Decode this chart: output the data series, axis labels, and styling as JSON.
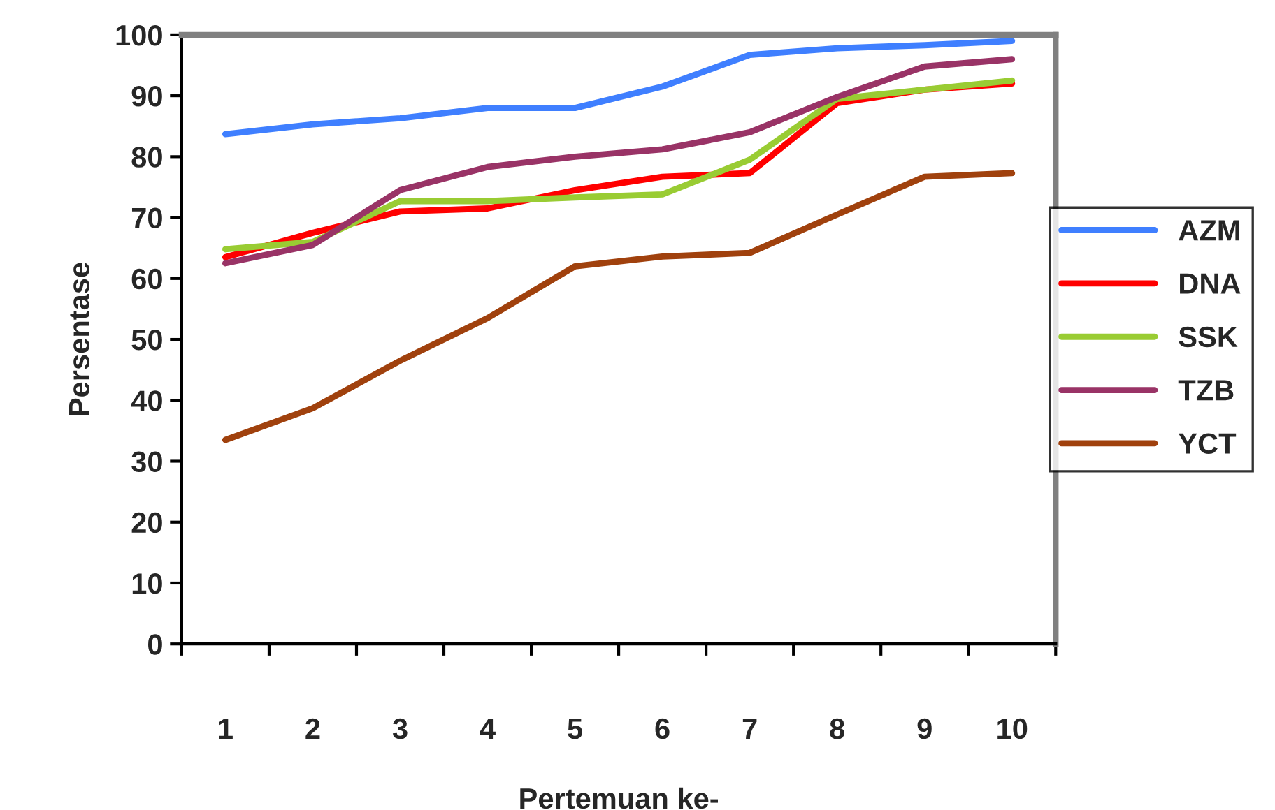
{
  "chart_data": {
    "type": "line",
    "xlabel": "Pertemuan ke-",
    "ylabel": "Persentase",
    "categories": [
      "1",
      "2",
      "3",
      "4",
      "5",
      "6",
      "7",
      "8",
      "9",
      "10"
    ],
    "series": [
      {
        "name": "AZM",
        "color": "#3f7fff",
        "values": [
          83.7,
          85.3,
          86.3,
          88,
          88,
          91.5,
          96.7,
          97.8,
          98.3,
          99
        ]
      },
      {
        "name": "DNA",
        "color": "#ff0000",
        "values": [
          63.5,
          67.5,
          71,
          71.5,
          74.5,
          76.7,
          77.3,
          88.8,
          91,
          92
        ]
      },
      {
        "name": "SSK",
        "color": "#99cc33",
        "values": [
          64.8,
          66,
          72.7,
          72.7,
          73.3,
          73.8,
          79.5,
          89.5,
          91,
          92.5
        ]
      },
      {
        "name": "TZB",
        "color": "#993366",
        "values": [
          62.5,
          65.5,
          74.5,
          78.3,
          80,
          81.2,
          84,
          89.8,
          94.8,
          96
        ]
      },
      {
        "name": "YCT",
        "color": "#a0410d",
        "values": [
          33.5,
          38.7,
          46.5,
          53.5,
          62,
          63.6,
          64.2,
          70.5,
          76.7,
          77.3
        ]
      }
    ],
    "ylim": [
      0,
      100
    ],
    "yticks": [
      0,
      10,
      20,
      30,
      40,
      50,
      60,
      70,
      80,
      90,
      100
    ],
    "grid": false,
    "legend": "right",
    "marker": "none",
    "line_style": "solid"
  }
}
